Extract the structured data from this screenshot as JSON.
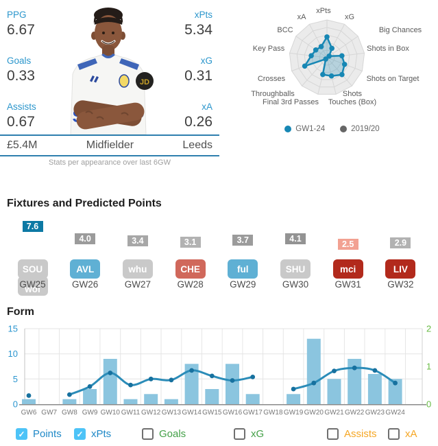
{
  "profile": {
    "stats_left": [
      {
        "label": "PPG",
        "value": "6.67"
      },
      {
        "label": "Goals",
        "value": "0.33"
      },
      {
        "label": "Assists",
        "value": "0.67"
      }
    ],
    "stats_right": [
      {
        "label": "xPts",
        "value": "5.34"
      },
      {
        "label": "xG",
        "value": "0.31"
      },
      {
        "label": "xA",
        "value": "0.26"
      }
    ],
    "price": "£5.4M",
    "position": "Midfielder",
    "team": "Leeds",
    "caption": "Stats per appearance over last 6GW"
  },
  "fixtures": {
    "title": "Fixtures and Predicted Points",
    "items": [
      {
        "gw": "GW25",
        "points": 7.6,
        "points_color": "#0d79a4",
        "opponents": [
          {
            "name": "SOU",
            "color": "#c9c9c9"
          },
          {
            "name": "wol",
            "color": "#c9c9c9"
          }
        ]
      },
      {
        "gw": "GW26",
        "points": 4.0,
        "points_color": "#9b9b9b",
        "opponents": [
          {
            "name": "AVL",
            "color": "#5fb0d4"
          }
        ]
      },
      {
        "gw": "GW27",
        "points": 3.4,
        "points_color": "#a7a7a7",
        "opponents": [
          {
            "name": "whu",
            "color": "#c9c9c9"
          }
        ]
      },
      {
        "gw": "GW28",
        "points": 3.1,
        "points_color": "#b2b2b2",
        "opponents": [
          {
            "name": "CHE",
            "color": "#d0685b"
          }
        ]
      },
      {
        "gw": "GW29",
        "points": 3.7,
        "points_color": "#9b9b9b",
        "opponents": [
          {
            "name": "ful",
            "color": "#5fb0d4"
          }
        ]
      },
      {
        "gw": "GW30",
        "points": 4.1,
        "points_color": "#939393",
        "opponents": [
          {
            "name": "SHU",
            "color": "#c9c9c9"
          }
        ]
      },
      {
        "gw": "GW31",
        "points": 2.5,
        "points_color": "#f2a192",
        "opponents": [
          {
            "name": "mci",
            "color": "#b22a1c"
          }
        ]
      },
      {
        "gw": "GW32",
        "points": 2.9,
        "points_color": "#b2b2b2",
        "opponents": [
          {
            "name": "LIV",
            "color": "#b22a1c"
          }
        ]
      }
    ]
  },
  "form": {
    "title": "Form",
    "checkboxes": [
      {
        "label": "Points",
        "checked": true,
        "label_color": "#1e88c7"
      },
      {
        "label": "xPts",
        "checked": true,
        "label_color": "#1e88c7"
      },
      {
        "label": "Goals",
        "checked": false,
        "label_color": "#43a047"
      },
      {
        "label": "xG",
        "checked": false,
        "label_color": "#43a047"
      },
      {
        "label": "Assists",
        "checked": false,
        "label_color": "#f5a623"
      },
      {
        "label": "xA",
        "checked": false,
        "label_color": "#f5a623"
      }
    ]
  },
  "chart_data": [
    {
      "type": "radar",
      "axes": [
        "xPts",
        "xG",
        "Big Chances",
        "Shots in Box",
        "Shots on Target",
        "Shots",
        "Touches (Box)",
        "Final 3rd Passes",
        "Throughballs",
        "Crosses",
        "Key Pass",
        "BCC",
        "xA"
      ],
      "scale": [
        0,
        1
      ],
      "series": [
        {
          "name": "GW1-24",
          "color": "#1787b4",
          "fill": "rgba(23,135,180,0.25)",
          "values": [
            0.55,
            0.28,
            0.07,
            0.4,
            0.5,
            0.6,
            0.5,
            0.46,
            0.05,
            0.63,
            0.42,
            0.36,
            0.33
          ]
        },
        {
          "name": "2019/20",
          "color": "#666666",
          "values": []
        }
      ],
      "legend": [
        {
          "label": "GW1-24",
          "color": "#1787b4"
        },
        {
          "label": "2019/20",
          "color": "#666666"
        }
      ],
      "legend_position": "bottom"
    },
    {
      "type": "bar",
      "title": "Form",
      "categories": [
        "GW6",
        "GW7",
        "GW8",
        "GW9",
        "GW10",
        "GW11",
        "GW12",
        "GW13",
        "GW14",
        "GW15",
        "GW16",
        "GW17",
        "GW18",
        "GW19",
        "GW20",
        "GW21",
        "GW22",
        "GW23",
        "GW24"
      ],
      "series": [
        {
          "name": "Points",
          "render": "bar",
          "axis": "left",
          "color": "#8bc5df",
          "values": [
            1,
            0,
            1,
            3,
            9,
            1,
            2,
            1,
            8,
            3,
            8,
            2,
            0,
            2,
            13,
            5,
            9,
            6,
            5
          ]
        },
        {
          "name": "xPts",
          "render": "line",
          "axis": "left",
          "color": "#2b8cb8",
          "dot_color": "#17719f",
          "values": [
            1.7,
            null,
            1.9,
            3.5,
            6.2,
            3.8,
            5.0,
            4.8,
            6.7,
            5.6,
            4.7,
            5.4,
            null,
            3.0,
            4.2,
            6.6,
            7.2,
            6.7,
            4.2
          ]
        }
      ],
      "left_axis": {
        "range": [
          0,
          15
        ],
        "ticks": [
          0,
          5,
          10,
          15
        ],
        "color": "#2a95cf"
      },
      "right_axis": {
        "range": [
          0,
          2
        ],
        "ticks": [
          0,
          1,
          2
        ],
        "color": "#68bb44"
      },
      "grid": true
    }
  ]
}
